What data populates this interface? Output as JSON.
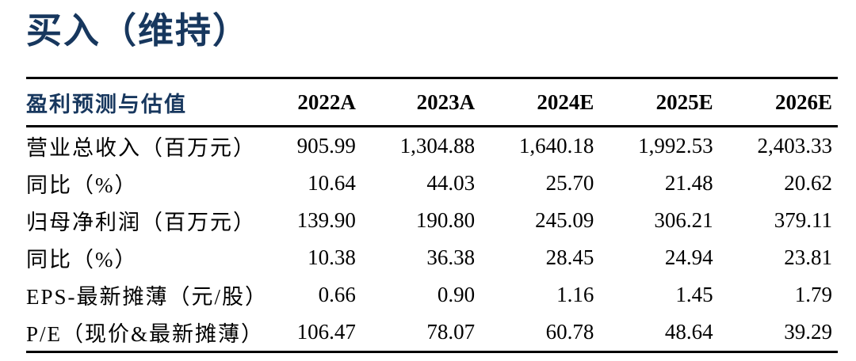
{
  "page": {
    "title": "买入（维持）"
  },
  "colors": {
    "accent_navy": "#17375E",
    "text_black": "#000000",
    "background": "#FFFFFF"
  },
  "table": {
    "header_label": "盈利预测与估值",
    "columns": [
      "2022A",
      "2023A",
      "2024E",
      "2025E",
      "2026E"
    ],
    "rows": [
      {
        "label": "营业总收入（百万元）",
        "values": [
          "905.99",
          "1,304.88",
          "1,640.18",
          "1,992.53",
          "2,403.33"
        ]
      },
      {
        "label": "同比（%）",
        "values": [
          "10.64",
          "44.03",
          "25.70",
          "21.48",
          "20.62"
        ]
      },
      {
        "label": "归母净利润（百万元）",
        "values": [
          "139.90",
          "190.80",
          "245.09",
          "306.21",
          "379.11"
        ]
      },
      {
        "label": "同比（%）",
        "values": [
          "10.38",
          "36.38",
          "28.45",
          "24.94",
          "23.81"
        ]
      },
      {
        "label": "EPS-最新摊薄（元/股）",
        "values": [
          "0.66",
          "0.90",
          "1.16",
          "1.45",
          "1.79"
        ]
      },
      {
        "label": "P/E（现价&最新摊薄）",
        "values": [
          "106.47",
          "78.07",
          "60.78",
          "48.64",
          "39.29"
        ]
      }
    ]
  }
}
